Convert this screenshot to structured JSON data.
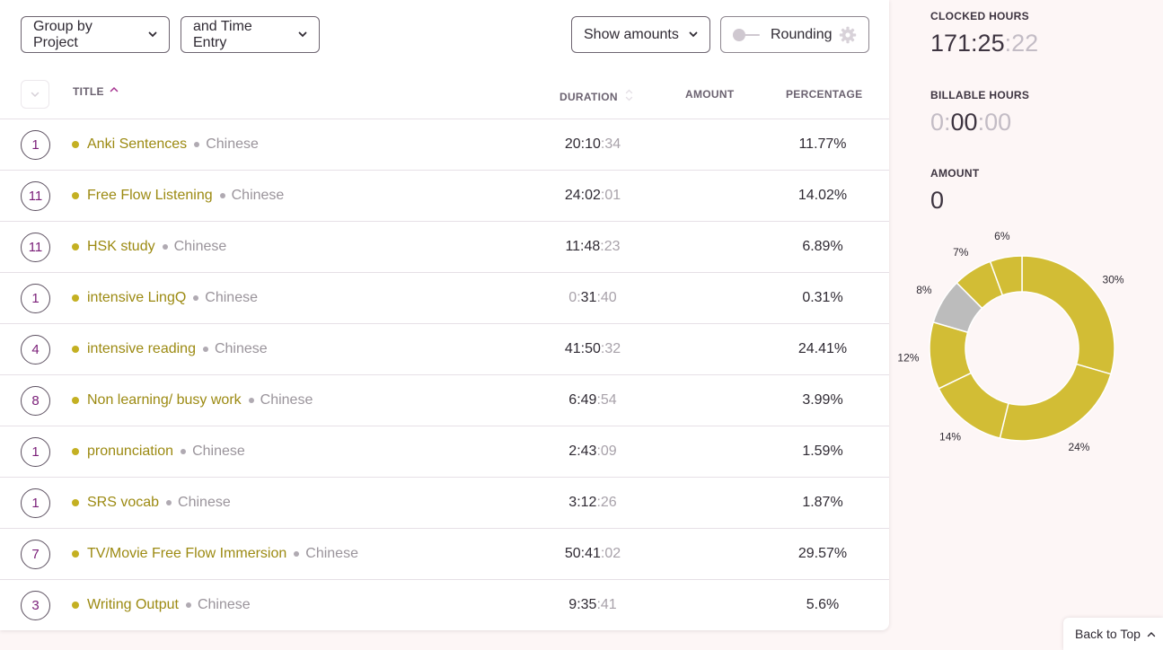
{
  "toolbar": {
    "group_by_label": "Group by Project",
    "secondary_group_label": "and Time Entry",
    "show_amounts_label": "Show amounts",
    "rounding_label": "Rounding"
  },
  "table": {
    "columns": {
      "title": "TITLE",
      "duration": "DURATION",
      "amount": "AMOUNT",
      "percentage": "PERCENTAGE"
    },
    "rows": [
      {
        "count": "1",
        "project": "Anki Sentences",
        "client": "Chinese",
        "duration_main": "20:10",
        "duration_sec": ":34",
        "percentage": "11.77%"
      },
      {
        "count": "11",
        "project": "Free Flow Listening",
        "client": "Chinese",
        "duration_main": "24:02",
        "duration_sec": ":01",
        "percentage": "14.02%"
      },
      {
        "count": "11",
        "project": "HSK study",
        "client": "Chinese",
        "duration_main": "11:48",
        "duration_sec": ":23",
        "percentage": "6.89%"
      },
      {
        "count": "1",
        "project": "intensive LingQ",
        "client": "Chinese",
        "duration_lead": "0:",
        "duration_main": "31",
        "duration_sec": ":40",
        "percentage": "0.31%"
      },
      {
        "count": "4",
        "project": "intensive reading",
        "client": "Chinese",
        "duration_main": "41:50",
        "duration_sec": ":32",
        "percentage": "24.41%"
      },
      {
        "count": "8",
        "project": "Non learning/ busy work",
        "client": "Chinese",
        "duration_main": "6:49",
        "duration_sec": ":54",
        "percentage": "3.99%"
      },
      {
        "count": "1",
        "project": "pronunciation",
        "client": "Chinese",
        "duration_main": "2:43",
        "duration_sec": ":09",
        "percentage": "1.59%"
      },
      {
        "count": "1",
        "project": "SRS vocab",
        "client": "Chinese",
        "duration_main": "3:12",
        "duration_sec": ":26",
        "percentage": "1.87%"
      },
      {
        "count": "7",
        "project": "TV/Movie Free Flow Immersion",
        "client": "Chinese",
        "duration_main": "50:41",
        "duration_sec": ":02",
        "percentage": "29.57%"
      },
      {
        "count": "3",
        "project": "Writing Output",
        "client": "Chinese",
        "duration_main": "9:35",
        "duration_sec": ":41",
        "percentage": "5.6%"
      }
    ]
  },
  "summary": {
    "clocked_label": "CLOCKED HOURS",
    "clocked_main": "171:25",
    "clocked_sec": ":22",
    "billable_label": "BILLABLE HOURS",
    "billable_lead": "0:",
    "billable_main": "00",
    "billable_sec": ":00",
    "amount_label": "AMOUNT",
    "amount_value": "0"
  },
  "chart_data": {
    "type": "pie",
    "donut": true,
    "slices": [
      {
        "label": "30%",
        "value": 29.57,
        "color": "#d2bd35"
      },
      {
        "label": "24%",
        "value": 24.41,
        "color": "#d2bd35"
      },
      {
        "label": "14%",
        "value": 14.02,
        "color": "#d2bd35"
      },
      {
        "label": "12%",
        "value": 11.77,
        "color": "#d2bd35"
      },
      {
        "label": "8%",
        "value": 7.99,
        "color": "#bcbcbc"
      },
      {
        "label": "7%",
        "value": 6.89,
        "color": "#d2bd35"
      },
      {
        "label": "6%",
        "value": 5.6,
        "color": "#d2bd35"
      }
    ]
  },
  "footer": {
    "back_to_top_label": "Back to Top"
  },
  "colors": {
    "accent": "#7a1e78",
    "project": "#c4b022",
    "project_text": "#9c8a12"
  }
}
